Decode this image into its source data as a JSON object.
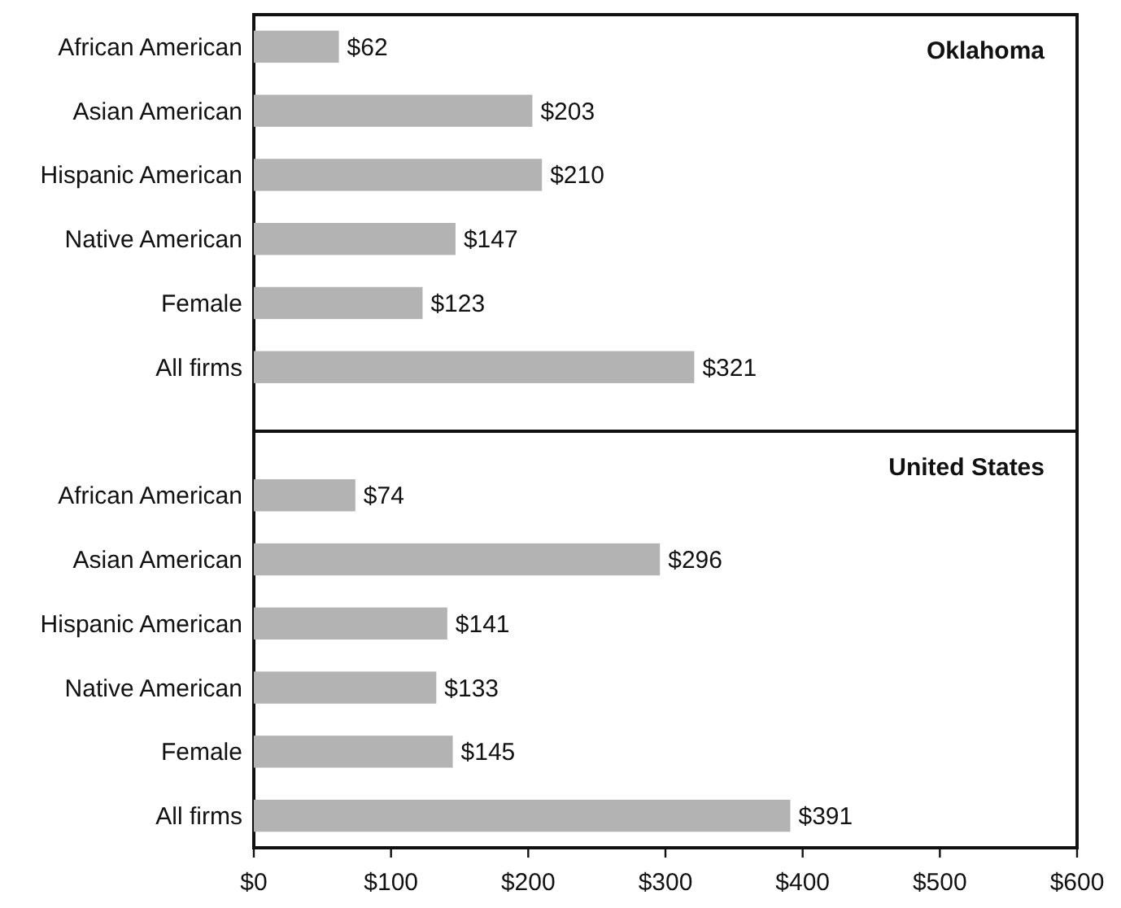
{
  "chart_data": [
    {
      "type": "bar",
      "orientation": "horizontal",
      "title": "Oklahoma",
      "categories": [
        "African American",
        "Asian American",
        "Hispanic American",
        "Native American",
        "Female",
        "All firms"
      ],
      "values": [
        62,
        203,
        210,
        147,
        123,
        321
      ],
      "value_labels": [
        "$62",
        "$203",
        "$210",
        "$147",
        "$123",
        "$321"
      ],
      "color": "#b3b3b3",
      "xlim": [
        0,
        600
      ],
      "tick_labels": "y"
    },
    {
      "type": "bar",
      "orientation": "horizontal",
      "title": "United States",
      "categories": [
        "African American",
        "Asian American",
        "Hispanic American",
        "Native American",
        "Female",
        "All firms"
      ],
      "values": [
        74,
        296,
        141,
        133,
        145,
        391
      ],
      "value_labels": [
        "$74",
        "$296",
        "$141",
        "$133",
        "$145",
        "$391"
      ],
      "color": "#b3b3b3",
      "xlim": [
        0,
        600
      ],
      "xticks": [
        {
          "value": 0,
          "label": "$0"
        },
        {
          "value": 100,
          "label": "$100"
        },
        {
          "value": 200,
          "label": "$200"
        },
        {
          "value": 300,
          "label": "$300"
        },
        {
          "value": 400,
          "label": "$400"
        },
        {
          "value": 500,
          "label": "$500"
        },
        {
          "value": 600,
          "label": "$600"
        }
      ]
    }
  ]
}
